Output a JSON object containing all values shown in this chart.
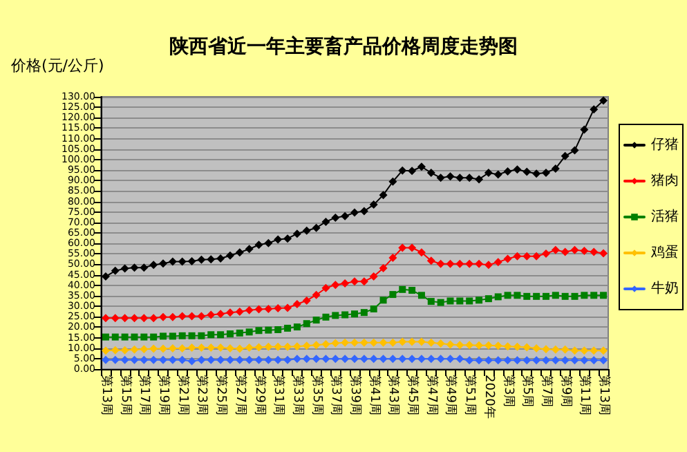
{
  "chart_data": {
    "type": "line",
    "title": "陕西省近一年主要畜产品价格周度走势图",
    "ylabel": "价格(元/公斤)",
    "categories": [
      "第13周",
      null,
      "第15周",
      null,
      "第17周",
      null,
      "第19周",
      null,
      "第21周",
      null,
      "第23周",
      null,
      "第25周",
      null,
      "第27周",
      null,
      "第29周",
      null,
      "第31周",
      null,
      "第33周",
      null,
      "第35周",
      null,
      "第37周",
      null,
      "第39周",
      null,
      "第41周",
      null,
      "第43周",
      null,
      "第45周",
      null,
      "第47周",
      null,
      "第49周",
      null,
      "第51周",
      null,
      "2020年",
      null,
      "第3周",
      null,
      "第5周",
      null,
      "第7周",
      null,
      "第9周",
      null,
      "第11周",
      null,
      "第13周"
    ],
    "series": [
      {
        "name": "仔猪",
        "color": "#000000",
        "marker": "diamond",
        "values": [
          44.2,
          46.9,
          48.0,
          48.4,
          48.4,
          49.7,
          50.4,
          51.3,
          51.3,
          51.5,
          52.2,
          52.4,
          52.8,
          54.2,
          55.7,
          57.3,
          59.3,
          60.1,
          61.9,
          62.3,
          64.6,
          66.1,
          67.4,
          70.3,
          72.3,
          73.0,
          74.7,
          75.4,
          78.5,
          83.1,
          89.5,
          94.8,
          94.6,
          96.6,
          93.7,
          91.3,
          92.0,
          91.3,
          91.3,
          90.6,
          93.7,
          92.9,
          94.4,
          95.3,
          94.2,
          93.3,
          93.7,
          95.7,
          101.7,
          104.4,
          114.3,
          124.0,
          128.2
        ]
      },
      {
        "name": "猪肉",
        "color": "#ff0000",
        "marker": "diamond",
        "values": [
          24.3,
          24.3,
          24.3,
          24.3,
          24.3,
          24.3,
          24.8,
          24.8,
          25.2,
          25.2,
          25.2,
          25.9,
          26.3,
          27.0,
          27.4,
          28.1,
          28.5,
          28.7,
          29.0,
          29.2,
          31.0,
          32.7,
          35.4,
          38.7,
          40.2,
          40.9,
          41.8,
          41.8,
          44.2,
          48.2,
          53.1,
          57.9,
          57.9,
          55.7,
          51.7,
          50.2,
          50.2,
          50.2,
          50.2,
          50.2,
          49.7,
          51.1,
          52.6,
          53.9,
          53.9,
          53.9,
          55.1,
          56.8,
          55.9,
          56.8,
          56.4,
          55.9,
          55.3
        ]
      },
      {
        "name": "活猪",
        "color": "#008000",
        "marker": "square",
        "values": [
          15.3,
          15.3,
          15.3,
          15.3,
          15.3,
          15.3,
          15.7,
          15.7,
          15.9,
          15.9,
          15.9,
          16.4,
          16.4,
          16.8,
          17.2,
          17.7,
          18.4,
          18.6,
          18.8,
          19.5,
          20.1,
          21.7,
          23.4,
          24.8,
          25.6,
          25.9,
          26.3,
          27.0,
          28.7,
          32.9,
          35.6,
          38.0,
          37.6,
          35.2,
          32.3,
          31.8,
          32.5,
          32.5,
          32.5,
          32.9,
          33.6,
          34.5,
          35.2,
          35.2,
          34.7,
          34.7,
          34.7,
          35.2,
          34.7,
          34.7,
          35.2,
          35.2,
          35.2
        ]
      },
      {
        "name": "鸡蛋",
        "color": "#ffc000",
        "marker": "diamond",
        "values": [
          8.8,
          9.0,
          9.0,
          9.3,
          9.5,
          9.7,
          9.7,
          9.9,
          9.9,
          10.2,
          10.2,
          10.2,
          10.2,
          9.9,
          9.7,
          10.2,
          10.4,
          10.6,
          10.6,
          10.6,
          10.8,
          11.1,
          11.5,
          11.9,
          12.4,
          12.6,
          12.6,
          12.6,
          12.6,
          12.6,
          12.6,
          13.0,
          13.0,
          13.0,
          12.6,
          12.2,
          11.7,
          11.5,
          11.5,
          11.3,
          11.3,
          11.1,
          10.8,
          10.6,
          10.4,
          9.9,
          9.5,
          9.3,
          9.3,
          8.8,
          8.8,
          8.8,
          8.8
        ]
      },
      {
        "name": "牛奶",
        "color": "#3366ff",
        "marker": "diamond",
        "values": [
          4.4,
          4.4,
          4.4,
          4.4,
          4.4,
          4.4,
          4.4,
          4.4,
          4.4,
          3.8,
          4.4,
          4.4,
          4.4,
          4.4,
          4.4,
          4.4,
          4.4,
          4.4,
          4.4,
          4.4,
          4.9,
          4.9,
          4.9,
          4.9,
          4.9,
          4.9,
          4.9,
          4.9,
          4.9,
          4.9,
          4.9,
          4.9,
          4.9,
          4.9,
          4.9,
          4.9,
          4.9,
          4.9,
          4.2,
          4.2,
          4.2,
          4.2,
          4.2,
          4.2,
          4.2,
          4.2,
          4.2,
          4.2,
          4.2,
          4.2,
          4.2,
          4.2,
          4.2
        ]
      }
    ],
    "ylim": [
      0,
      130
    ],
    "yticks": [
      {
        "value": 0,
        "label": "0.00"
      },
      {
        "value": 5,
        "label": "5.00"
      },
      {
        "value": 10,
        "label": "10.00"
      },
      {
        "value": 15,
        "label": "15.00"
      },
      {
        "value": 20,
        "label": "20.00"
      },
      {
        "value": 25,
        "label": "25.00"
      },
      {
        "value": 30,
        "label": "30.00"
      },
      {
        "value": 35,
        "label": "35.00"
      },
      {
        "value": 40,
        "label": "40.00"
      },
      {
        "value": 45,
        "label": "45.00"
      },
      {
        "value": 50,
        "label": "50.00"
      },
      {
        "value": 55,
        "label": "55.00"
      },
      {
        "value": 60,
        "label": "60.00"
      },
      {
        "value": 65,
        "label": "65.00"
      },
      {
        "value": 70,
        "label": "70.00"
      },
      {
        "value": 75,
        "label": "75.00"
      },
      {
        "value": 80,
        "label": "80.00"
      },
      {
        "value": 85,
        "label": "85.00"
      },
      {
        "value": 90,
        "label": "90.00"
      },
      {
        "value": 95,
        "label": "95.00"
      },
      {
        "value": 100,
        "label": "100.00"
      },
      {
        "value": 105,
        "label": "105.00"
      },
      {
        "value": 110,
        "label": "110.00"
      },
      {
        "value": 115,
        "label": "115.00"
      },
      {
        "value": 120,
        "label": "120.00"
      },
      {
        "value": 125,
        "label": "125.00"
      },
      {
        "value": 130,
        "label": "130.00"
      }
    ],
    "grid": "y",
    "legend": "right",
    "line_style": "solid"
  }
}
